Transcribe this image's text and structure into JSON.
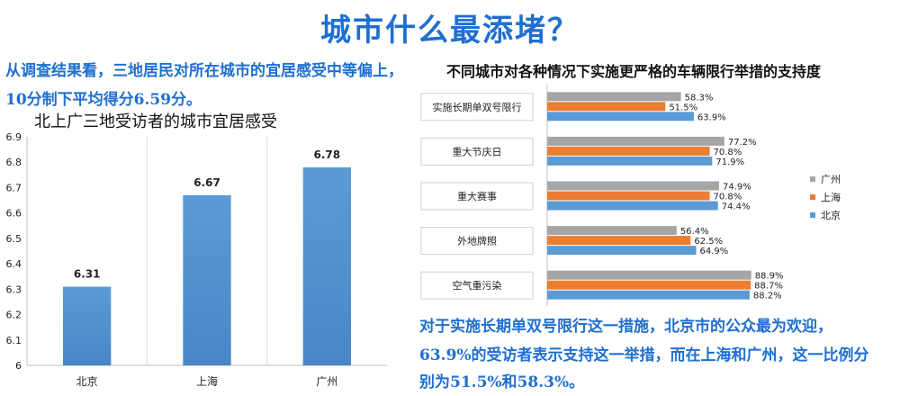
{
  "header": {
    "title": "城市什么最添堵？"
  },
  "summary_left": {
    "line1": "从调查结果看，三地居民对所在城市的宜居感受中等偏上，",
    "line2": "10分制下平均得分6.59分。"
  },
  "summary_right": {
    "line1": "对于实施长期单双号限行这一措施，北京市的公众最为欢迎，",
    "line2": "63.9%的受访者表示支持这一举措，而在上海和广州，这一比例分",
    "line3": "别为51.5%和58.3%。"
  },
  "colors": {
    "bar_blue": "#5b9bd5",
    "bar_blue_dark": "#4a86c8",
    "beijing": "#5b9bd5",
    "shanghai": "#ed7d31",
    "guangzhou": "#a5a5a5",
    "title_blue": "#1f6fd1"
  },
  "chart_data": [
    {
      "type": "bar",
      "title": "北上广三地受访者的城市宜居感受",
      "categories": [
        "北京",
        "上海",
        "广州"
      ],
      "values": [
        6.31,
        6.67,
        6.78
      ],
      "data_labels": [
        "6.31",
        "6.67",
        "6.78"
      ],
      "ylim": [
        6,
        6.9
      ],
      "yticks": [
        "6",
        "6.1",
        "6.2",
        "6.3",
        "6.4",
        "6.5",
        "6.6",
        "6.7",
        "6.8",
        "6.9"
      ],
      "grid": "vertical-separators",
      "xlabel": "",
      "ylabel": ""
    },
    {
      "type": "bar",
      "orientation": "horizontal",
      "title": "不同城市对各种情况下实施更严格的车辆限行举措的支持度",
      "categories": [
        "实施长期单双号限行",
        "重大节庆日",
        "重大赛事",
        "外地牌照",
        "空气重污染"
      ],
      "series": [
        {
          "name": "广州",
          "values": [
            58.3,
            77.2,
            74.9,
            56.4,
            88.9
          ],
          "labels": [
            "58.3%",
            "77.2%",
            "74.9%",
            "56.4%",
            "88.9%"
          ]
        },
        {
          "name": "上海",
          "values": [
            51.5,
            70.8,
            70.8,
            62.5,
            88.7
          ],
          "labels": [
            "51.5%",
            "70.8%",
            "70.8%",
            "62.5%",
            "88.7%"
          ]
        },
        {
          "name": "北京",
          "values": [
            63.9,
            71.9,
            74.4,
            64.9,
            88.2
          ],
          "labels": [
            "63.9%",
            "71.9%",
            "74.4%",
            "64.9%",
            "88.2%"
          ]
        }
      ],
      "legend": "right",
      "xlim": [
        0,
        100
      ]
    }
  ]
}
